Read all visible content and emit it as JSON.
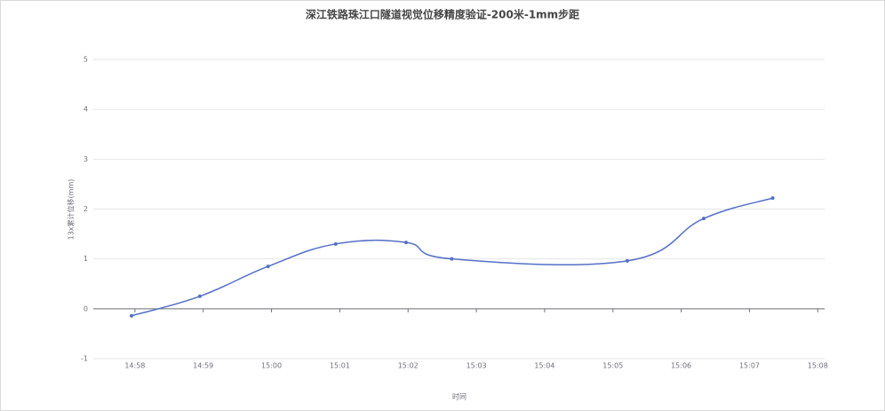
{
  "chart_data": {
    "type": "line",
    "title": "深江铁路珠江口隧道视觉位移精度验证-200米-1mm步距",
    "y_label": "13x累计位移(mm)",
    "x_label": "时间",
    "series": [
      {
        "name": "13x",
        "color": "#5470c6",
        "x": [
          897.95,
          898.95,
          899.95,
          900.94,
          901.97,
          902.64,
          905.21,
          906.33,
          907.34
        ],
        "values": [
          -0.14,
          0.25,
          0.85,
          1.3,
          1.33,
          1.0,
          0.96,
          1.81,
          2.22
        ]
      }
    ],
    "xlim": [
      897.39,
      908.1
    ],
    "xticks": [
      {
        "value": 898,
        "label": "14:58"
      },
      {
        "value": 899,
        "label": "14:59"
      },
      {
        "value": 900,
        "label": "15:00"
      },
      {
        "value": 901,
        "label": "15:01"
      },
      {
        "value": 902,
        "label": "15:02"
      },
      {
        "value": 903,
        "label": "15:03"
      },
      {
        "value": 904,
        "label": "15:04"
      },
      {
        "value": 905,
        "label": "15:05"
      },
      {
        "value": 906,
        "label": "15:06"
      },
      {
        "value": 907,
        "label": "15:07"
      },
      {
        "value": 908,
        "label": "15:08"
      }
    ],
    "ylim": [
      -1,
      5
    ],
    "yticks": [
      -1,
      0,
      1,
      2,
      3,
      4,
      5
    ],
    "grid": true
  }
}
